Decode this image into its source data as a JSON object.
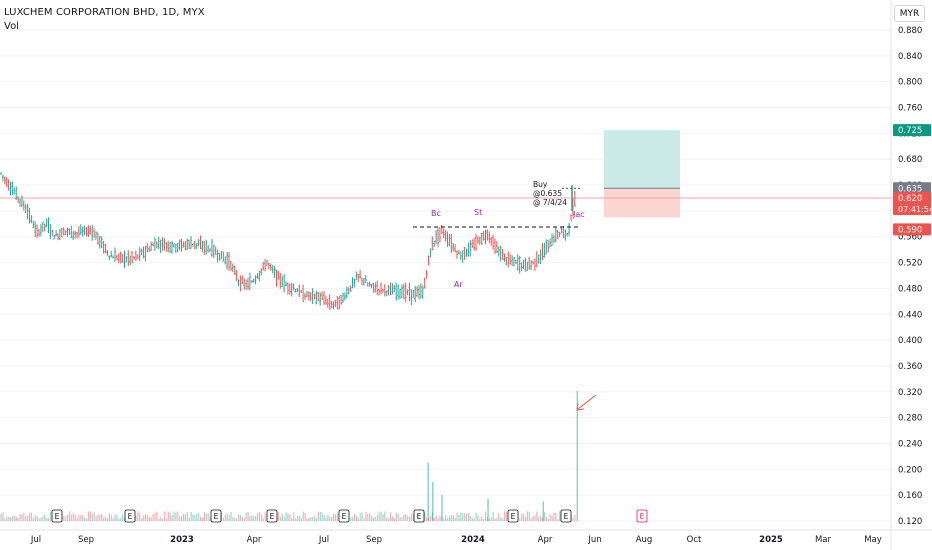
{
  "header": {
    "title": "LUXCHEM CORPORATION BHD, 1D, MYX",
    "volume_label": "Vol"
  },
  "currency_button": "MYR",
  "colors": {
    "up": "#26a69a",
    "down": "#ef5350",
    "target_zone": "#cbe9e6",
    "stop_zone": "#fbd5d2",
    "annotation": "#9c27b0",
    "current_price_line": "#f7a5a5",
    "badge_target": "#089981",
    "badge_current": "#ef5350",
    "badge_entry": "#787b86"
  },
  "y_axis": {
    "ticks": [
      "0.880",
      "0.840",
      "0.800",
      "0.760",
      "0.720",
      "0.680",
      "0.640",
      "0.600",
      "0.560",
      "0.520",
      "0.480",
      "0.440",
      "0.400",
      "0.360",
      "0.320",
      "0.280",
      "0.240",
      "0.200",
      "0.160",
      "0.120"
    ],
    "badges": {
      "target": "0.725",
      "entry": "0.635",
      "current": "0.620",
      "countdown": "07:41:54",
      "stop": "0.590"
    }
  },
  "x_axis": {
    "labels": [
      {
        "text": "Jul",
        "bold": false
      },
      {
        "text": "Sep",
        "bold": false
      },
      {
        "text": "2023",
        "bold": true
      },
      {
        "text": "Apr",
        "bold": false
      },
      {
        "text": "Jul",
        "bold": false
      },
      {
        "text": "Sep",
        "bold": false
      },
      {
        "text": "2024",
        "bold": true
      },
      {
        "text": "Apr",
        "bold": false
      },
      {
        "text": "Jun",
        "bold": false
      },
      {
        "text": "Aug",
        "bold": false
      },
      {
        "text": "Oct",
        "bold": false
      },
      {
        "text": "2025",
        "bold": true
      },
      {
        "text": "Mar",
        "bold": false
      },
      {
        "text": "May",
        "bold": false
      }
    ]
  },
  "earnings_markers": [
    "E",
    "E",
    "E",
    "E",
    "E",
    "E",
    "E",
    "E",
    "E"
  ],
  "annotations": {
    "bc": "Bc",
    "st": "St",
    "ar": "Ar",
    "jac": "Jac",
    "buy_line1": "Buy",
    "buy_line2": "@0.635",
    "buy_line3": "@ 7/4/24"
  },
  "chart_data": {
    "type": "candlestick",
    "symbol": "LUXCHEM CORPORATION BHD",
    "interval": "1D",
    "exchange": "MYX",
    "currency": "MYR",
    "ylim": [
      0.12,
      0.88
    ],
    "price_path": [
      [
        0.0,
        0.66
      ],
      [
        0.01,
        0.64
      ],
      [
        0.02,
        0.62
      ],
      [
        0.03,
        0.6
      ],
      [
        0.04,
        0.565
      ],
      [
        0.05,
        0.58
      ],
      [
        0.06,
        0.56
      ],
      [
        0.07,
        0.57
      ],
      [
        0.08,
        0.565
      ],
      [
        0.1,
        0.57
      ],
      [
        0.11,
        0.55
      ],
      [
        0.12,
        0.53
      ],
      [
        0.14,
        0.525
      ],
      [
        0.15,
        0.53
      ],
      [
        0.17,
        0.55
      ],
      [
        0.19,
        0.545
      ],
      [
        0.21,
        0.55
      ],
      [
        0.23,
        0.54
      ],
      [
        0.25,
        0.52
      ],
      [
        0.26,
        0.49
      ],
      [
        0.27,
        0.485
      ],
      [
        0.28,
        0.5
      ],
      [
        0.29,
        0.52
      ],
      [
        0.3,
        0.5
      ],
      [
        0.31,
        0.485
      ],
      [
        0.32,
        0.48
      ],
      [
        0.33,
        0.47
      ],
      [
        0.35,
        0.465
      ],
      [
        0.36,
        0.455
      ],
      [
        0.37,
        0.46
      ],
      [
        0.38,
        0.48
      ],
      [
        0.39,
        0.5
      ],
      [
        0.4,
        0.485
      ],
      [
        0.41,
        0.48
      ],
      [
        0.43,
        0.475
      ],
      [
        0.44,
        0.475
      ],
      [
        0.45,
        0.47
      ],
      [
        0.46,
        0.475
      ],
      [
        0.465,
        0.52
      ],
      [
        0.47,
        0.55
      ],
      [
        0.48,
        0.57
      ],
      [
        0.49,
        0.55
      ],
      [
        0.5,
        0.53
      ],
      [
        0.51,
        0.54
      ],
      [
        0.52,
        0.555
      ],
      [
        0.53,
        0.565
      ],
      [
        0.54,
        0.54
      ],
      [
        0.55,
        0.525
      ],
      [
        0.56,
        0.52
      ],
      [
        0.57,
        0.515
      ],
      [
        0.58,
        0.52
      ],
      [
        0.59,
        0.535
      ],
      [
        0.6,
        0.555
      ],
      [
        0.61,
        0.57
      ],
      [
        0.615,
        0.56
      ],
      [
        0.62,
        0.585
      ],
      [
        0.625,
        0.625
      ],
      [
        0.63,
        0.62
      ]
    ],
    "resistance_level": 0.575,
    "entry_price": 0.635,
    "target_price": 0.725,
    "stop_price": 0.59,
    "last_price": 0.62,
    "volume": {
      "baseline_max_ratio": 0.12,
      "spikes": [
        {
          "pos": 0.465,
          "value": 0.45
        },
        {
          "pos": 0.47,
          "value": 0.3
        },
        {
          "pos": 0.48,
          "value": 0.2
        },
        {
          "pos": 0.53,
          "value": 0.17
        },
        {
          "pos": 0.59,
          "value": 0.15
        },
        {
          "pos": 0.627,
          "value": 1.0
        }
      ]
    }
  }
}
